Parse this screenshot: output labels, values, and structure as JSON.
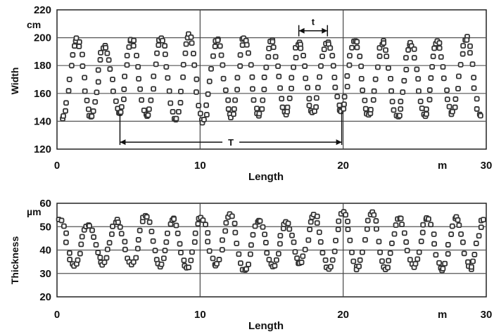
{
  "chart_data": [
    {
      "type": "scatter",
      "id": "width",
      "title": "",
      "xlabel": "Length",
      "ylabel": "Width",
      "y_unit": "cm",
      "x_unit": "m",
      "xlim": [
        0,
        30
      ],
      "ylim": [
        120,
        220
      ],
      "xticks": [
        0,
        10,
        20,
        30
      ],
      "yticks": [
        120,
        140,
        160,
        180,
        200,
        220
      ],
      "vgrid": [
        10,
        20
      ],
      "hgrid": [
        140,
        160,
        180,
        200
      ],
      "legend": "none",
      "marker_color": "#333333",
      "annotations": {
        "short_period_label": "t",
        "short_period_range": [
          16.9,
          18.9
        ],
        "long_period_label": "T",
        "long_period_range": [
          4.4,
          19.9
        ],
        "short_period_y": 205,
        "long_period_y": 125
      },
      "series": [
        {
          "values_description": "periodic width oscillation",
          "peaks_x": [
            1.4,
            3.3,
            5.2,
            7.3,
            9.2,
            11.2,
            13.1,
            15.0,
            16.9,
            18.9,
            20.8,
            22.8,
            24.7,
            26.6,
            28.6
          ],
          "peaks_y": [
            199,
            194,
            199,
            200,
            202,
            199,
            200,
            198,
            197,
            197,
            198,
            197,
            196,
            197,
            200
          ],
          "troughs_x": [
            0.4,
            2.4,
            4.4,
            6.3,
            8.3,
            10.2,
            12.2,
            14.1,
            16.0,
            17.9,
            19.9,
            21.8,
            23.8,
            25.7,
            27.6,
            29.6
          ],
          "troughs_y": [
            142,
            143,
            145,
            143,
            141,
            139,
            143,
            144,
            145,
            146,
            147,
            144,
            143,
            144,
            145,
            144
          ],
          "points_per_segment": 10
        }
      ]
    },
    {
      "type": "scatter",
      "id": "thickness",
      "title": "",
      "xlabel": "Length",
      "ylabel": "Thickness",
      "y_unit": "µm",
      "x_unit": "m",
      "xlim": [
        0,
        30
      ],
      "ylim": [
        20,
        60
      ],
      "xticks": [
        0,
        10,
        20,
        30
      ],
      "yticks": [
        20,
        30,
        40,
        50,
        60
      ],
      "vgrid": [
        10,
        20
      ],
      "hgrid": [
        30,
        40,
        50
      ],
      "legend": "none",
      "marker_color": "#333333",
      "series": [
        {
          "values_description": "periodic thickness oscillation",
          "peaks_x": [
            0.2,
            2.2,
            4.2,
            6.2,
            8.1,
            10.1,
            12.1,
            14.1,
            16.0,
            18.0,
            20.0,
            22.0,
            23.9,
            25.9,
            27.9,
            29.8
          ],
          "peaks_y": [
            53,
            51,
            53,
            55,
            54,
            54,
            55,
            53,
            52,
            55,
            56,
            56,
            54,
            54,
            54,
            53
          ],
          "troughs_x": [
            1.2,
            3.2,
            5.2,
            7.2,
            9.1,
            11.1,
            13.1,
            15.1,
            17.0,
            19.0,
            21.0,
            23.0,
            24.9,
            26.9,
            28.9
          ],
          "troughs_y": [
            33,
            34,
            34,
            33,
            32,
            33,
            31,
            33,
            34,
            32,
            32,
            32,
            33,
            31,
            32
          ],
          "points_per_segment": 8
        }
      ]
    }
  ]
}
